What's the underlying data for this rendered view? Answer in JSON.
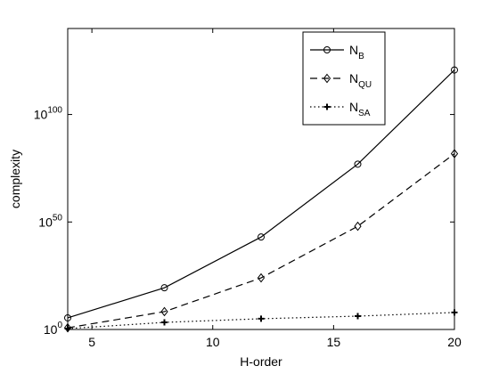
{
  "chart_data": {
    "type": "line",
    "xlabel": "H-order",
    "ylabel": "complexity",
    "x": [
      4,
      8,
      12,
      16,
      20
    ],
    "series": [
      {
        "name": "N_B",
        "color": "#000000",
        "linestyle": "solid",
        "marker": "circle",
        "values": [
          250000.0,
          2.5e+19,
          1e+43,
          8e+76,
          5e+120
        ]
      },
      {
        "name": "N_QU",
        "color": "#000000",
        "linestyle": "dashed",
        "marker": "diamond",
        "values": [
          6,
          200000000.0,
          1e+24,
          1e+48,
          6e+81
        ]
      },
      {
        "name": "N_SA",
        "color": "#000000",
        "linestyle": "dotted",
        "marker": "plus",
        "values": [
          2.5,
          2000,
          100000.0,
          1600000.0,
          80000000.0
        ]
      }
    ],
    "xlim": [
      4,
      20
    ],
    "xticks": [
      5,
      10,
      15,
      20
    ],
    "ylim": [
      1,
      1e+140
    ],
    "ylog": true,
    "yticks": [
      {
        "value": 1,
        "label": "10^0"
      },
      {
        "value": 1e+50,
        "label": "10^50"
      },
      {
        "value": 1e+100,
        "label": "10^100"
      }
    ],
    "grid": false,
    "legend": "upper-right"
  }
}
